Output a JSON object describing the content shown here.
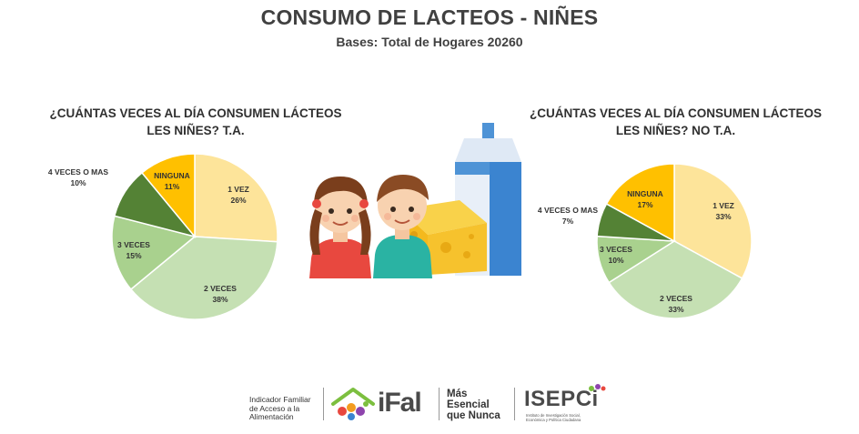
{
  "header": {
    "title": "CONSUMO DE LACTEOS - NIÑES",
    "subtitle": "Bases: Total de Hogares 20260"
  },
  "chart_data": [
    {
      "type": "pie",
      "title": "¿CUÁNTAS VECES AL DÍA CONSUMEN LÁCTEOS LES NIÑES? T.A.",
      "title_lines": [
        "¿CUÁNTAS VECES AL DÍA CONSUMEN LÁCTEOS",
        "LES NIÑES? T.A."
      ],
      "slices": [
        {
          "label": "1 VEZ",
          "value": 26,
          "display": "26%",
          "color": "#fde49a"
        },
        {
          "label": "2 VECES",
          "value": 38,
          "display": "38%",
          "color": "#c5e0b3"
        },
        {
          "label": "3 VECES",
          "value": 15,
          "display": "15%",
          "color": "#a9d18e"
        },
        {
          "label": "4 VECES O MAS",
          "value": 10,
          "display": "10%",
          "color": "#548235"
        },
        {
          "label": "NINGUNA",
          "value": 11,
          "display": "11%",
          "color": "#ffc000"
        }
      ]
    },
    {
      "type": "pie",
      "title": "¿CUÁNTAS VECES AL DÍA CONSUMEN LÁCTEOS LES NIÑES? NO T.A.",
      "title_lines": [
        "¿CUÁNTAS VECES AL DÍA CONSUMEN LÁCTEOS",
        "LES NIÑES? NO T.A."
      ],
      "slices": [
        {
          "label": "1 VEZ",
          "value": 33,
          "display": "33%",
          "color": "#fde49a"
        },
        {
          "label": "2 VECES",
          "value": 33,
          "display": "33%",
          "color": "#c5e0b3"
        },
        {
          "label": "3 VECES",
          "value": 10,
          "display": "10%",
          "color": "#a9d18e"
        },
        {
          "label": "4 VECES O MAS",
          "value": 7,
          "display": "7%",
          "color": "#548235"
        },
        {
          "label": "NINGUNA",
          "value": 17,
          "display": "17%",
          "color": "#ffc000"
        }
      ]
    }
  ],
  "footer": {
    "ifal_desc": [
      "Indicador Familiar",
      "de Acceso a la",
      "Alimentación"
    ],
    "ifal_logo": "iFal",
    "mas_esencial": [
      "Más",
      "Esencial",
      "que Nunca"
    ],
    "isepci_logo": "ISEPCi",
    "isepci_desc": [
      "Instituto de Investigación Social,",
      "Económica y Política Ciudadana"
    ]
  },
  "illustration": {
    "icons": [
      "girl-icon",
      "boy-icon",
      "cheese-icon",
      "milk-carton-icon"
    ]
  }
}
